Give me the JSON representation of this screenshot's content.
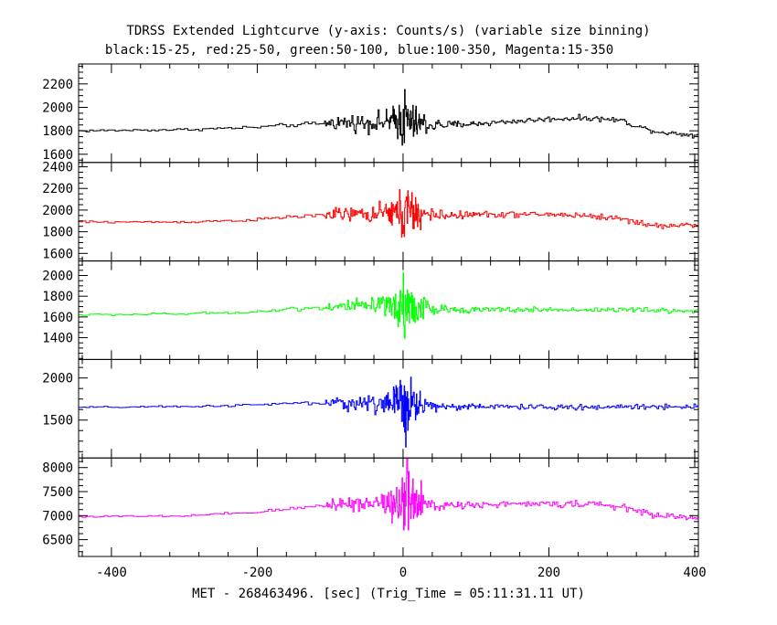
{
  "chart_data": {
    "type": "line",
    "title": "TDRSS Extended Lightcurve (y-axis: Counts/s) (variable size binning)",
    "subtitle": "black:15-25, red:25-50, green:50-100, blue:100-350, Magenta:15-350",
    "xlabel": "MET - 268463496. [sec] (Trig_Time = 05:11:31.11 UT)",
    "xlim": [
      -445,
      405
    ],
    "xticks": [
      -400,
      -200,
      0,
      200,
      400
    ],
    "grid": false,
    "panels": [
      {
        "name": "black:15-25",
        "color": "#000000",
        "ylim": [
          1530,
          2370
        ],
        "yticks": [
          1600,
          1800,
          2000,
          2200
        ],
        "ytick_labels": [
          "1600",
          "1800",
          "2000",
          "2200"
        ],
        "profile_x": [
          -445,
          -300,
          -200,
          -150,
          -110,
          -100,
          -50,
          -20,
          -5,
          0,
          10,
          20,
          40,
          60,
          100,
          150,
          200,
          250,
          300,
          320,
          350,
          405
        ],
        "profile_y": [
          1800,
          1810,
          1830,
          1850,
          1860,
          1870,
          1870,
          1880,
          1890,
          1900,
          1870,
          1860,
          1850,
          1850,
          1860,
          1880,
          1900,
          1910,
          1890,
          1840,
          1790,
          1760
        ],
        "noise_amp": [
          8,
          8,
          10,
          12,
          15,
          40,
          55,
          65,
          120,
          210,
          150,
          90,
          50,
          25,
          18,
          16,
          16,
          16,
          16,
          16,
          14,
          14
        ]
      },
      {
        "name": "red:25-50",
        "color": "#ff0000",
        "ylim": [
          1530,
          2440
        ],
        "yticks": [
          1600,
          1800,
          2000,
          2200,
          2400
        ],
        "ytick_labels": [
          "1600",
          "1800",
          "2000",
          "2200",
          "2400"
        ],
        "profile_x": [
          -445,
          -300,
          -200,
          -150,
          -110,
          -100,
          -50,
          -20,
          -5,
          0,
          10,
          20,
          40,
          60,
          100,
          150,
          200,
          250,
          300,
          320,
          350,
          405
        ],
        "profile_y": [
          1890,
          1890,
          1910,
          1940,
          1950,
          1960,
          1960,
          1970,
          1980,
          1990,
          1970,
          1960,
          1950,
          1950,
          1960,
          1960,
          1960,
          1950,
          1920,
          1890,
          1850,
          1870
        ],
        "noise_amp": [
          8,
          8,
          10,
          12,
          15,
          40,
          55,
          70,
          130,
          250,
          170,
          100,
          55,
          28,
          20,
          20,
          20,
          20,
          20,
          20,
          18,
          18
        ]
      },
      {
        "name": "green:50-100",
        "color": "#00ff00",
        "ylim": [
          1190,
          2140
        ],
        "yticks": [
          1400,
          1600,
          1800,
          2000
        ],
        "ytick_labels": [
          "1400",
          "1600",
          "1800",
          "2000"
        ],
        "profile_x": [
          -445,
          -300,
          -200,
          -150,
          -110,
          -100,
          -50,
          -20,
          -5,
          0,
          10,
          20,
          40,
          60,
          100,
          150,
          200,
          250,
          300,
          320,
          350,
          405
        ],
        "profile_y": [
          1620,
          1630,
          1650,
          1680,
          1690,
          1700,
          1700,
          1700,
          1700,
          1710,
          1690,
          1680,
          1670,
          1670,
          1670,
          1670,
          1670,
          1670,
          1670,
          1670,
          1660,
          1660
        ],
        "noise_amp": [
          8,
          8,
          10,
          12,
          15,
          40,
          55,
          70,
          140,
          330,
          200,
          110,
          55,
          25,
          18,
          18,
          18,
          18,
          18,
          18,
          18,
          18
        ]
      },
      {
        "name": "blue:100-350",
        "color": "#0000ff",
        "ylim": [
          1050,
          2220
        ],
        "yticks": [
          1500,
          2000
        ],
        "ytick_labels": [
          "1500",
          "2000"
        ],
        "profile_x": [
          -445,
          -300,
          -200,
          -150,
          -110,
          -100,
          -50,
          -20,
          -5,
          0,
          10,
          20,
          40,
          60,
          100,
          150,
          200,
          250,
          300,
          320,
          350,
          405
        ],
        "profile_y": [
          1650,
          1660,
          1680,
          1700,
          1700,
          1700,
          1700,
          1700,
          1700,
          1720,
          1690,
          1680,
          1670,
          1660,
          1660,
          1660,
          1650,
          1650,
          1660,
          1660,
          1660,
          1660
        ],
        "noise_amp": [
          8,
          8,
          10,
          12,
          15,
          50,
          70,
          90,
          200,
          480,
          270,
          130,
          60,
          28,
          22,
          22,
          22,
          22,
          22,
          22,
          22,
          22
        ]
      },
      {
        "name": "Magenta:15-350",
        "color": "#ff00ff",
        "ylim": [
          6150,
          8200
        ],
        "yticks": [
          6500,
          7000,
          7500,
          8000
        ],
        "ytick_labels": [
          "6500",
          "7000",
          "7500",
          "8000"
        ],
        "profile_x": [
          -445,
          -300,
          -200,
          -150,
          -110,
          -100,
          -50,
          -20,
          -5,
          0,
          10,
          20,
          40,
          60,
          100,
          150,
          200,
          250,
          300,
          320,
          350,
          405
        ],
        "profile_y": [
          6980,
          6990,
          7070,
          7150,
          7200,
          7250,
          7260,
          7280,
          7300,
          7320,
          7260,
          7230,
          7210,
          7220,
          7230,
          7240,
          7240,
          7250,
          7180,
          7100,
          7000,
          6950
        ],
        "noise_amp": [
          15,
          15,
          20,
          25,
          30,
          100,
          140,
          180,
          400,
          900,
          600,
          300,
          150,
          60,
          45,
          45,
          45,
          45,
          45,
          45,
          40,
          40
        ]
      }
    ]
  }
}
